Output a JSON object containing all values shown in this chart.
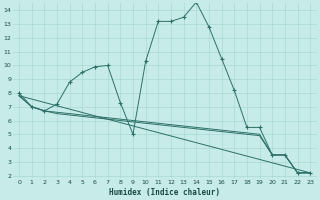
{
  "xlabel": "Humidex (Indice chaleur)",
  "bg_color": "#c6ebe8",
  "grid_color": "#a8d8d4",
  "line_color": "#2d7068",
  "xlim": [
    -0.5,
    23.5
  ],
  "ylim": [
    1.8,
    14.5
  ],
  "xticks": [
    0,
    1,
    2,
    3,
    4,
    5,
    6,
    7,
    8,
    9,
    10,
    11,
    12,
    13,
    14,
    15,
    16,
    17,
    18,
    19,
    20,
    21,
    22,
    23
  ],
  "yticks": [
    2,
    3,
    4,
    5,
    6,
    7,
    8,
    9,
    10,
    11,
    12,
    13,
    14
  ],
  "line1_x": [
    0,
    1,
    2,
    3,
    4,
    5,
    6,
    7,
    8,
    9,
    10,
    11,
    12,
    13,
    14,
    15,
    16,
    17,
    18,
    19,
    20,
    21,
    22,
    23
  ],
  "line1_y": [
    8.0,
    7.0,
    6.7,
    7.2,
    8.8,
    9.5,
    9.9,
    10.0,
    7.3,
    5.0,
    10.3,
    13.2,
    13.2,
    13.5,
    14.6,
    12.8,
    10.5,
    8.2,
    5.5,
    5.5,
    3.5,
    3.5,
    2.2,
    2.2
  ],
  "line2_x": [
    0,
    1,
    2,
    3,
    4,
    5,
    6,
    7,
    8,
    9,
    10,
    11,
    12,
    13,
    14,
    15,
    16,
    17,
    18,
    19,
    20,
    21,
    22,
    23
  ],
  "line2_y": [
    7.8,
    7.0,
    6.7,
    6.6,
    6.5,
    6.4,
    6.3,
    6.2,
    6.1,
    6.0,
    5.9,
    5.8,
    5.7,
    5.6,
    5.5,
    5.4,
    5.3,
    5.2,
    5.1,
    5.0,
    3.5,
    3.5,
    2.2,
    2.2
  ],
  "line3_x": [
    0,
    1,
    2,
    3,
    4,
    5,
    6,
    7,
    8,
    9,
    10,
    11,
    12,
    13,
    14,
    15,
    16,
    17,
    18,
    19,
    20,
    21,
    22,
    23
  ],
  "line3_y": [
    7.8,
    7.0,
    6.7,
    6.5,
    6.4,
    6.3,
    6.2,
    6.1,
    6.0,
    5.9,
    5.8,
    5.7,
    5.6,
    5.5,
    5.4,
    5.3,
    5.2,
    5.1,
    5.0,
    4.9,
    3.5,
    3.5,
    2.2,
    2.2
  ],
  "line4_x": [
    0,
    23
  ],
  "line4_y": [
    7.8,
    2.2
  ]
}
